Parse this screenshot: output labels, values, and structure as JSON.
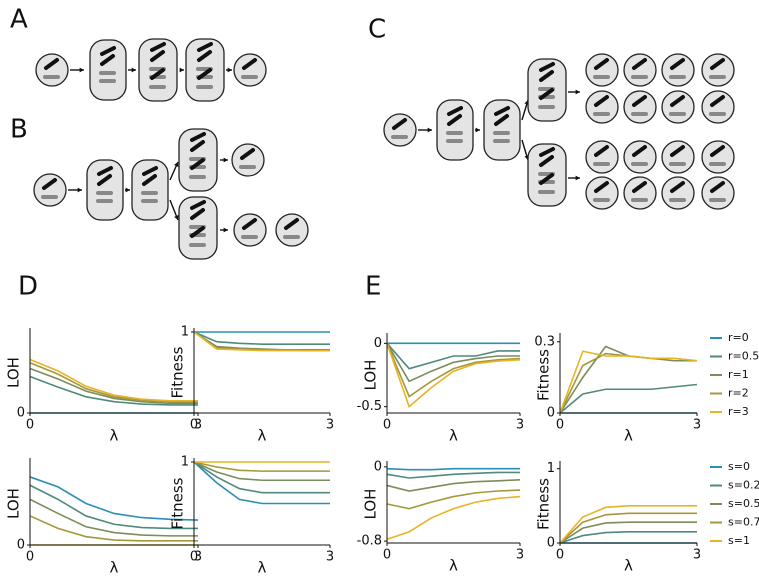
{
  "panels": [
    "A",
    "B",
    "C",
    "D",
    "E"
  ],
  "chart_data": [
    {
      "type": "line",
      "ylabel": "LOH",
      "xlabel": "λ",
      "x": [
        0,
        0.5,
        1,
        1.5,
        2,
        2.5,
        3
      ],
      "xlim": [
        0,
        3
      ],
      "xticks": [
        0,
        3
      ],
      "ylim": [
        0,
        1
      ],
      "yticks": [
        0
      ],
      "series": [
        {
          "name": "r=0",
          "color": "#2a8fb8",
          "values": [
            0,
            0,
            0,
            0,
            0,
            0,
            0
          ]
        },
        {
          "name": "r=0.5",
          "color": "#4f8a7c",
          "values": [
            0.45,
            0.32,
            0.2,
            0.14,
            0.11,
            0.1,
            0.1
          ]
        },
        {
          "name": "r=1",
          "color": "#7c8c5a",
          "values": [
            0.55,
            0.42,
            0.27,
            0.18,
            0.14,
            0.12,
            0.12
          ]
        },
        {
          "name": "r=2",
          "color": "#a5983a",
          "values": [
            0.62,
            0.48,
            0.3,
            0.2,
            0.16,
            0.14,
            0.14
          ]
        },
        {
          "name": "r=3",
          "color": "#e9b325",
          "values": [
            0.66,
            0.52,
            0.33,
            0.22,
            0.17,
            0.15,
            0.15
          ]
        }
      ]
    },
    {
      "type": "line",
      "ylabel": "Fitness",
      "xlabel": "λ",
      "x": [
        0,
        0.5,
        1,
        1.5,
        2,
        2.5,
        3
      ],
      "xlim": [
        0,
        3
      ],
      "xticks": [
        0,
        3
      ],
      "ylim": [
        0,
        1
      ],
      "yticks": [
        1
      ],
      "series": [
        {
          "name": "r=0",
          "color": "#2a8fb8",
          "values": [
            1,
            1,
            1,
            1,
            1,
            1,
            1
          ]
        },
        {
          "name": "r=0.5",
          "color": "#4f8a7c",
          "values": [
            1,
            0.88,
            0.86,
            0.85,
            0.85,
            0.85,
            0.85
          ]
        },
        {
          "name": "r=1",
          "color": "#7c8c5a",
          "values": [
            1,
            0.82,
            0.8,
            0.79,
            0.78,
            0.78,
            0.78
          ]
        },
        {
          "name": "r=2",
          "color": "#a5983a",
          "values": [
            1,
            0.8,
            0.79,
            0.78,
            0.78,
            0.77,
            0.77
          ]
        },
        {
          "name": "r=3",
          "color": "#e9b325",
          "values": [
            1,
            0.79,
            0.78,
            0.77,
            0.77,
            0.77,
            0.77
          ]
        }
      ]
    },
    {
      "type": "line",
      "ylabel": "LOH",
      "xlabel": "λ",
      "x": [
        0,
        0.5,
        1,
        1.5,
        2,
        2.5,
        3
      ],
      "xlim": [
        0,
        3
      ],
      "xticks": [
        0,
        3
      ],
      "ylim": [
        0,
        1
      ],
      "yticks": [
        0
      ],
      "series": [
        {
          "name": "s=0",
          "color": "#2a8fb8",
          "values": [
            0.82,
            0.7,
            0.5,
            0.38,
            0.33,
            0.31,
            0.3
          ]
        },
        {
          "name": "s=0.25",
          "color": "#4f8a7c",
          "values": [
            0.72,
            0.55,
            0.35,
            0.25,
            0.21,
            0.2,
            0.2
          ]
        },
        {
          "name": "s=0.5",
          "color": "#7c8c5a",
          "values": [
            0.55,
            0.38,
            0.22,
            0.15,
            0.12,
            0.11,
            0.11
          ]
        },
        {
          "name": "s=0.75",
          "color": "#a5983a",
          "values": [
            0.35,
            0.2,
            0.1,
            0.06,
            0.05,
            0.05,
            0.05
          ]
        },
        {
          "name": "s=1",
          "color": "#e9b325",
          "values": [
            0,
            0,
            0,
            0,
            0,
            0,
            0
          ]
        }
      ]
    },
    {
      "type": "line",
      "ylabel": "Fitness",
      "xlabel": "λ",
      "x": [
        0,
        0.5,
        1,
        1.5,
        2,
        2.5,
        3
      ],
      "xlim": [
        0,
        3
      ],
      "xticks": [
        0,
        3
      ],
      "ylim": [
        0,
        1
      ],
      "yticks": [
        1
      ],
      "series": [
        {
          "name": "s=0",
          "color": "#2a8fb8",
          "values": [
            1,
            0.75,
            0.55,
            0.5,
            0.5,
            0.5,
            0.5
          ]
        },
        {
          "name": "s=0.25",
          "color": "#4f8a7c",
          "values": [
            1,
            0.82,
            0.68,
            0.63,
            0.63,
            0.63,
            0.63
          ]
        },
        {
          "name": "s=0.5",
          "color": "#7c8c5a",
          "values": [
            1,
            0.88,
            0.8,
            0.78,
            0.78,
            0.78,
            0.78
          ]
        },
        {
          "name": "s=0.75",
          "color": "#a5983a",
          "values": [
            1,
            0.94,
            0.9,
            0.89,
            0.89,
            0.89,
            0.89
          ]
        },
        {
          "name": "s=1",
          "color": "#e9b325",
          "values": [
            1,
            1,
            1,
            1,
            1,
            1,
            1
          ]
        }
      ]
    },
    {
      "type": "line",
      "ylabel": "LOH",
      "xlabel": "λ",
      "x": [
        0,
        0.5,
        1,
        1.5,
        2,
        2.5,
        3
      ],
      "xlim": [
        0,
        3
      ],
      "xticks": [
        0,
        3
      ],
      "ylim": [
        -0.55,
        0.05
      ],
      "yticks": [
        0,
        -0.5
      ],
      "series": [
        {
          "name": "r=0",
          "color": "#2a8fb8",
          "values": [
            0,
            0,
            0,
            0,
            0,
            0,
            0
          ]
        },
        {
          "name": "r=0.5",
          "color": "#4f8a7c",
          "values": [
            0,
            -0.2,
            -0.15,
            -0.1,
            -0.1,
            -0.06,
            -0.06
          ]
        },
        {
          "name": "r=1",
          "color": "#7c8c5a",
          "values": [
            0,
            -0.3,
            -0.22,
            -0.15,
            -0.12,
            -0.1,
            -0.1
          ]
        },
        {
          "name": "r=2",
          "color": "#a5983a",
          "values": [
            0,
            -0.42,
            -0.3,
            -0.2,
            -0.15,
            -0.13,
            -0.12
          ]
        },
        {
          "name": "r=3",
          "color": "#e9b325",
          "values": [
            0,
            -0.5,
            -0.35,
            -0.22,
            -0.16,
            -0.14,
            -0.13
          ]
        }
      ]
    },
    {
      "type": "line",
      "ylabel": "Fitness",
      "xlabel": "λ",
      "x": [
        0,
        0.5,
        1,
        1.5,
        2,
        2.5,
        3
      ],
      "xlim": [
        0,
        3
      ],
      "xticks": [
        0,
        3
      ],
      "ylim": [
        0,
        0.32
      ],
      "yticks": [
        0,
        0.3
      ],
      "series": [
        {
          "name": "r=0",
          "color": "#2a8fb8",
          "values": [
            0,
            0,
            0,
            0,
            0,
            0,
            0
          ]
        },
        {
          "name": "r=0.5",
          "color": "#4f8a7c",
          "values": [
            0,
            0.08,
            0.1,
            0.1,
            0.1,
            0.11,
            0.12
          ]
        },
        {
          "name": "r=1",
          "color": "#7c8c5a",
          "values": [
            0,
            0.15,
            0.28,
            0.24,
            0.23,
            0.22,
            0.22
          ]
        },
        {
          "name": "r=2",
          "color": "#a5983a",
          "values": [
            0,
            0.2,
            0.25,
            0.24,
            0.23,
            0.23,
            0.22
          ]
        },
        {
          "name": "r=3",
          "color": "#e9b325",
          "values": [
            0,
            0.26,
            0.24,
            0.24,
            0.23,
            0.23,
            0.22
          ]
        }
      ]
    },
    {
      "type": "line",
      "ylabel": "LOH",
      "xlabel": "λ",
      "x": [
        0,
        0.5,
        1,
        1.5,
        2,
        2.5,
        3
      ],
      "xlim": [
        0,
        3
      ],
      "xticks": [
        0,
        3
      ],
      "ylim": [
        -0.82,
        0.02
      ],
      "yticks": [
        0,
        -0.8
      ],
      "series": [
        {
          "name": "s=0",
          "color": "#2a8fb8",
          "values": [
            -0.02,
            -0.03,
            -0.03,
            -0.02,
            -0.02,
            -0.02,
            -0.02
          ]
        },
        {
          "name": "s=0.25",
          "color": "#4f8a7c",
          "values": [
            -0.08,
            -0.12,
            -0.1,
            -0.08,
            -0.07,
            -0.06,
            -0.06
          ]
        },
        {
          "name": "s=0.5",
          "color": "#7c8c5a",
          "values": [
            -0.2,
            -0.26,
            -0.22,
            -0.18,
            -0.16,
            -0.15,
            -0.14
          ]
        },
        {
          "name": "s=0.75",
          "color": "#a5983a",
          "values": [
            -0.4,
            -0.45,
            -0.38,
            -0.32,
            -0.28,
            -0.26,
            -0.25
          ]
        },
        {
          "name": "s=1",
          "color": "#e9b325",
          "values": [
            -0.78,
            -0.7,
            -0.55,
            -0.45,
            -0.38,
            -0.34,
            -0.32
          ]
        }
      ]
    },
    {
      "type": "line",
      "ylabel": "Fitness",
      "xlabel": "λ",
      "x": [
        0,
        0.5,
        1,
        1.5,
        2,
        2.5,
        3
      ],
      "xlim": [
        0,
        3
      ],
      "xticks": [
        0,
        3
      ],
      "ylim": [
        0,
        1.05
      ],
      "yticks": [
        0,
        1
      ],
      "series": [
        {
          "name": "s=0",
          "color": "#2a8fb8",
          "values": [
            0,
            0,
            0,
            0,
            0,
            0,
            0
          ]
        },
        {
          "name": "s=0.25",
          "color": "#4f8a7c",
          "values": [
            0,
            0.1,
            0.14,
            0.15,
            0.15,
            0.15,
            0.15
          ]
        },
        {
          "name": "s=0.5",
          "color": "#7c8c5a",
          "values": [
            0,
            0.2,
            0.27,
            0.28,
            0.28,
            0.28,
            0.28
          ]
        },
        {
          "name": "s=0.75",
          "color": "#a5983a",
          "values": [
            0,
            0.28,
            0.38,
            0.4,
            0.4,
            0.4,
            0.4
          ]
        },
        {
          "name": "s=1",
          "color": "#e9b325",
          "values": [
            0,
            0.35,
            0.48,
            0.5,
            0.5,
            0.5,
            0.5
          ]
        }
      ]
    }
  ]
}
